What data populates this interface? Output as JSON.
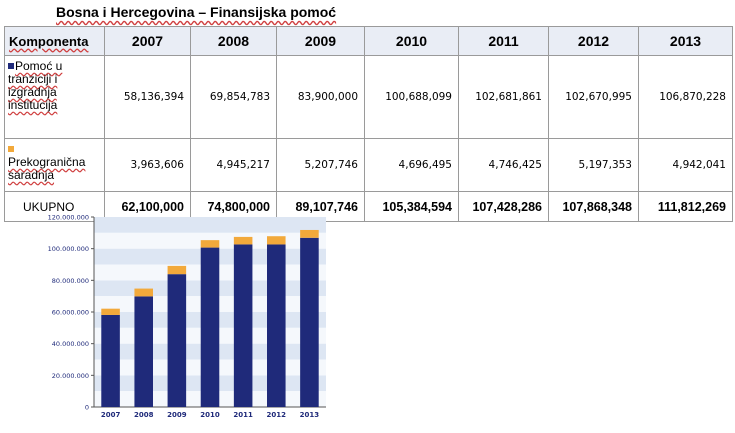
{
  "title": "Bosna i Hercegovina – Finansijska pomoć",
  "table": {
    "header_component": "Komponenta",
    "years": [
      "2007",
      "2008",
      "2009",
      "2010",
      "2011",
      "2012",
      "2013"
    ],
    "rows": [
      {
        "label": "Pomoć u tranziciji i izgradnja institucija",
        "color": "#1f2a7a",
        "values": [
          "58,136,394",
          "69,854,783",
          "83,900,000",
          "100,688,099",
          "102,681,861",
          "102,670,995",
          "106,870,228"
        ]
      },
      {
        "label": "Prekogranična saradnja",
        "color": "#f2a93b",
        "values": [
          "3,963,606",
          "4,945,217",
          "5,207,746",
          "4,696,495",
          "4,746,425",
          "5,197,353",
          "4,942,041"
        ]
      }
    ],
    "total_label": "UKUPNO",
    "totals": [
      "62,100,000",
      "74,800,000",
      "89,107,746",
      "105,384,594",
      "107,428,286",
      "107,868,348",
      "111,812,269"
    ]
  },
  "chart_data": {
    "type": "bar",
    "stacked": true,
    "categories": [
      "2007",
      "2008",
      "2009",
      "2010",
      "2011",
      "2012",
      "2013"
    ],
    "series": [
      {
        "name": "Pomoć u tranziciji i izgradnja institucija",
        "color": "#1f2a7a",
        "values": [
          58136394,
          69854783,
          83900000,
          100688099,
          102681861,
          102670995,
          106870228
        ]
      },
      {
        "name": "Prekogranična saradnja",
        "color": "#f2a93b",
        "values": [
          3963606,
          4945217,
          5207746,
          4696495,
          4746425,
          5197353,
          4942041
        ]
      }
    ],
    "ylim": [
      0,
      120000000
    ],
    "yticks": [
      0,
      20000000,
      40000000,
      60000000,
      80000000,
      100000000,
      120000000
    ],
    "ytick_labels": [
      "0",
      "20.000.000",
      "40.000.000",
      "60.000.000",
      "80.000.000",
      "100.000.000",
      "120.000.000"
    ],
    "title": "",
    "xlabel": "",
    "ylabel": ""
  }
}
